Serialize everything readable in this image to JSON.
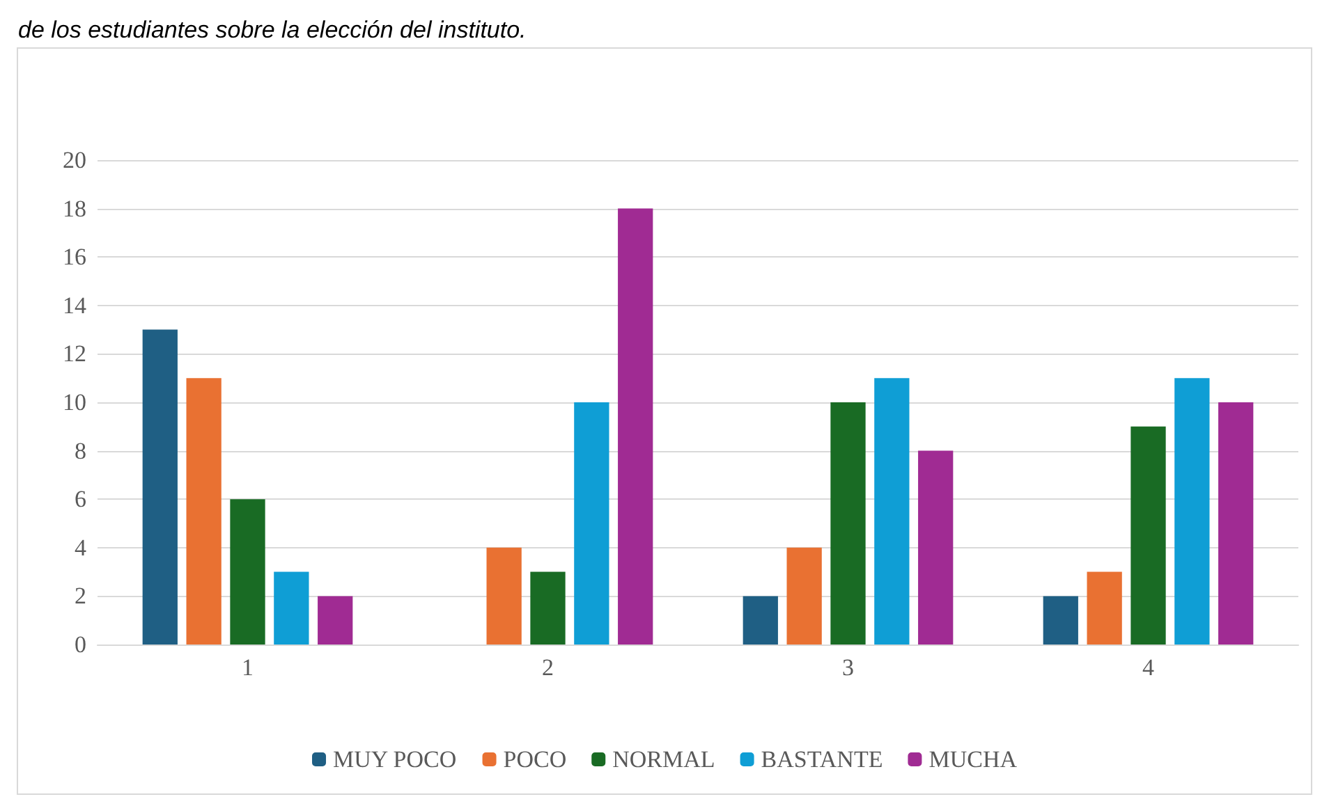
{
  "chart_data": {
    "type": "bar",
    "title": "de los estudiantes sobre la elección del instituto.",
    "categories": [
      "1",
      "2",
      "3",
      "4"
    ],
    "series": [
      {
        "name": "MUY POCO",
        "color": "#1f5f84",
        "values": [
          13,
          0,
          2,
          2
        ]
      },
      {
        "name": "POCO",
        "color": "#e97132",
        "values": [
          11,
          4,
          4,
          3
        ]
      },
      {
        "name": "NORMAL",
        "color": "#196b24",
        "values": [
          6,
          3,
          10,
          9
        ]
      },
      {
        "name": "BASTANTE",
        "color": "#0f9ed5",
        "values": [
          3,
          10,
          11,
          11
        ]
      },
      {
        "name": "MUCHA",
        "color": "#a02b93",
        "values": [
          2,
          18,
          8,
          10
        ]
      }
    ],
    "ylim": [
      0,
      20
    ],
    "yticks": [
      0,
      2,
      4,
      6,
      8,
      10,
      12,
      14,
      16,
      18,
      20
    ],
    "grid": "y",
    "legend": "bottom"
  }
}
